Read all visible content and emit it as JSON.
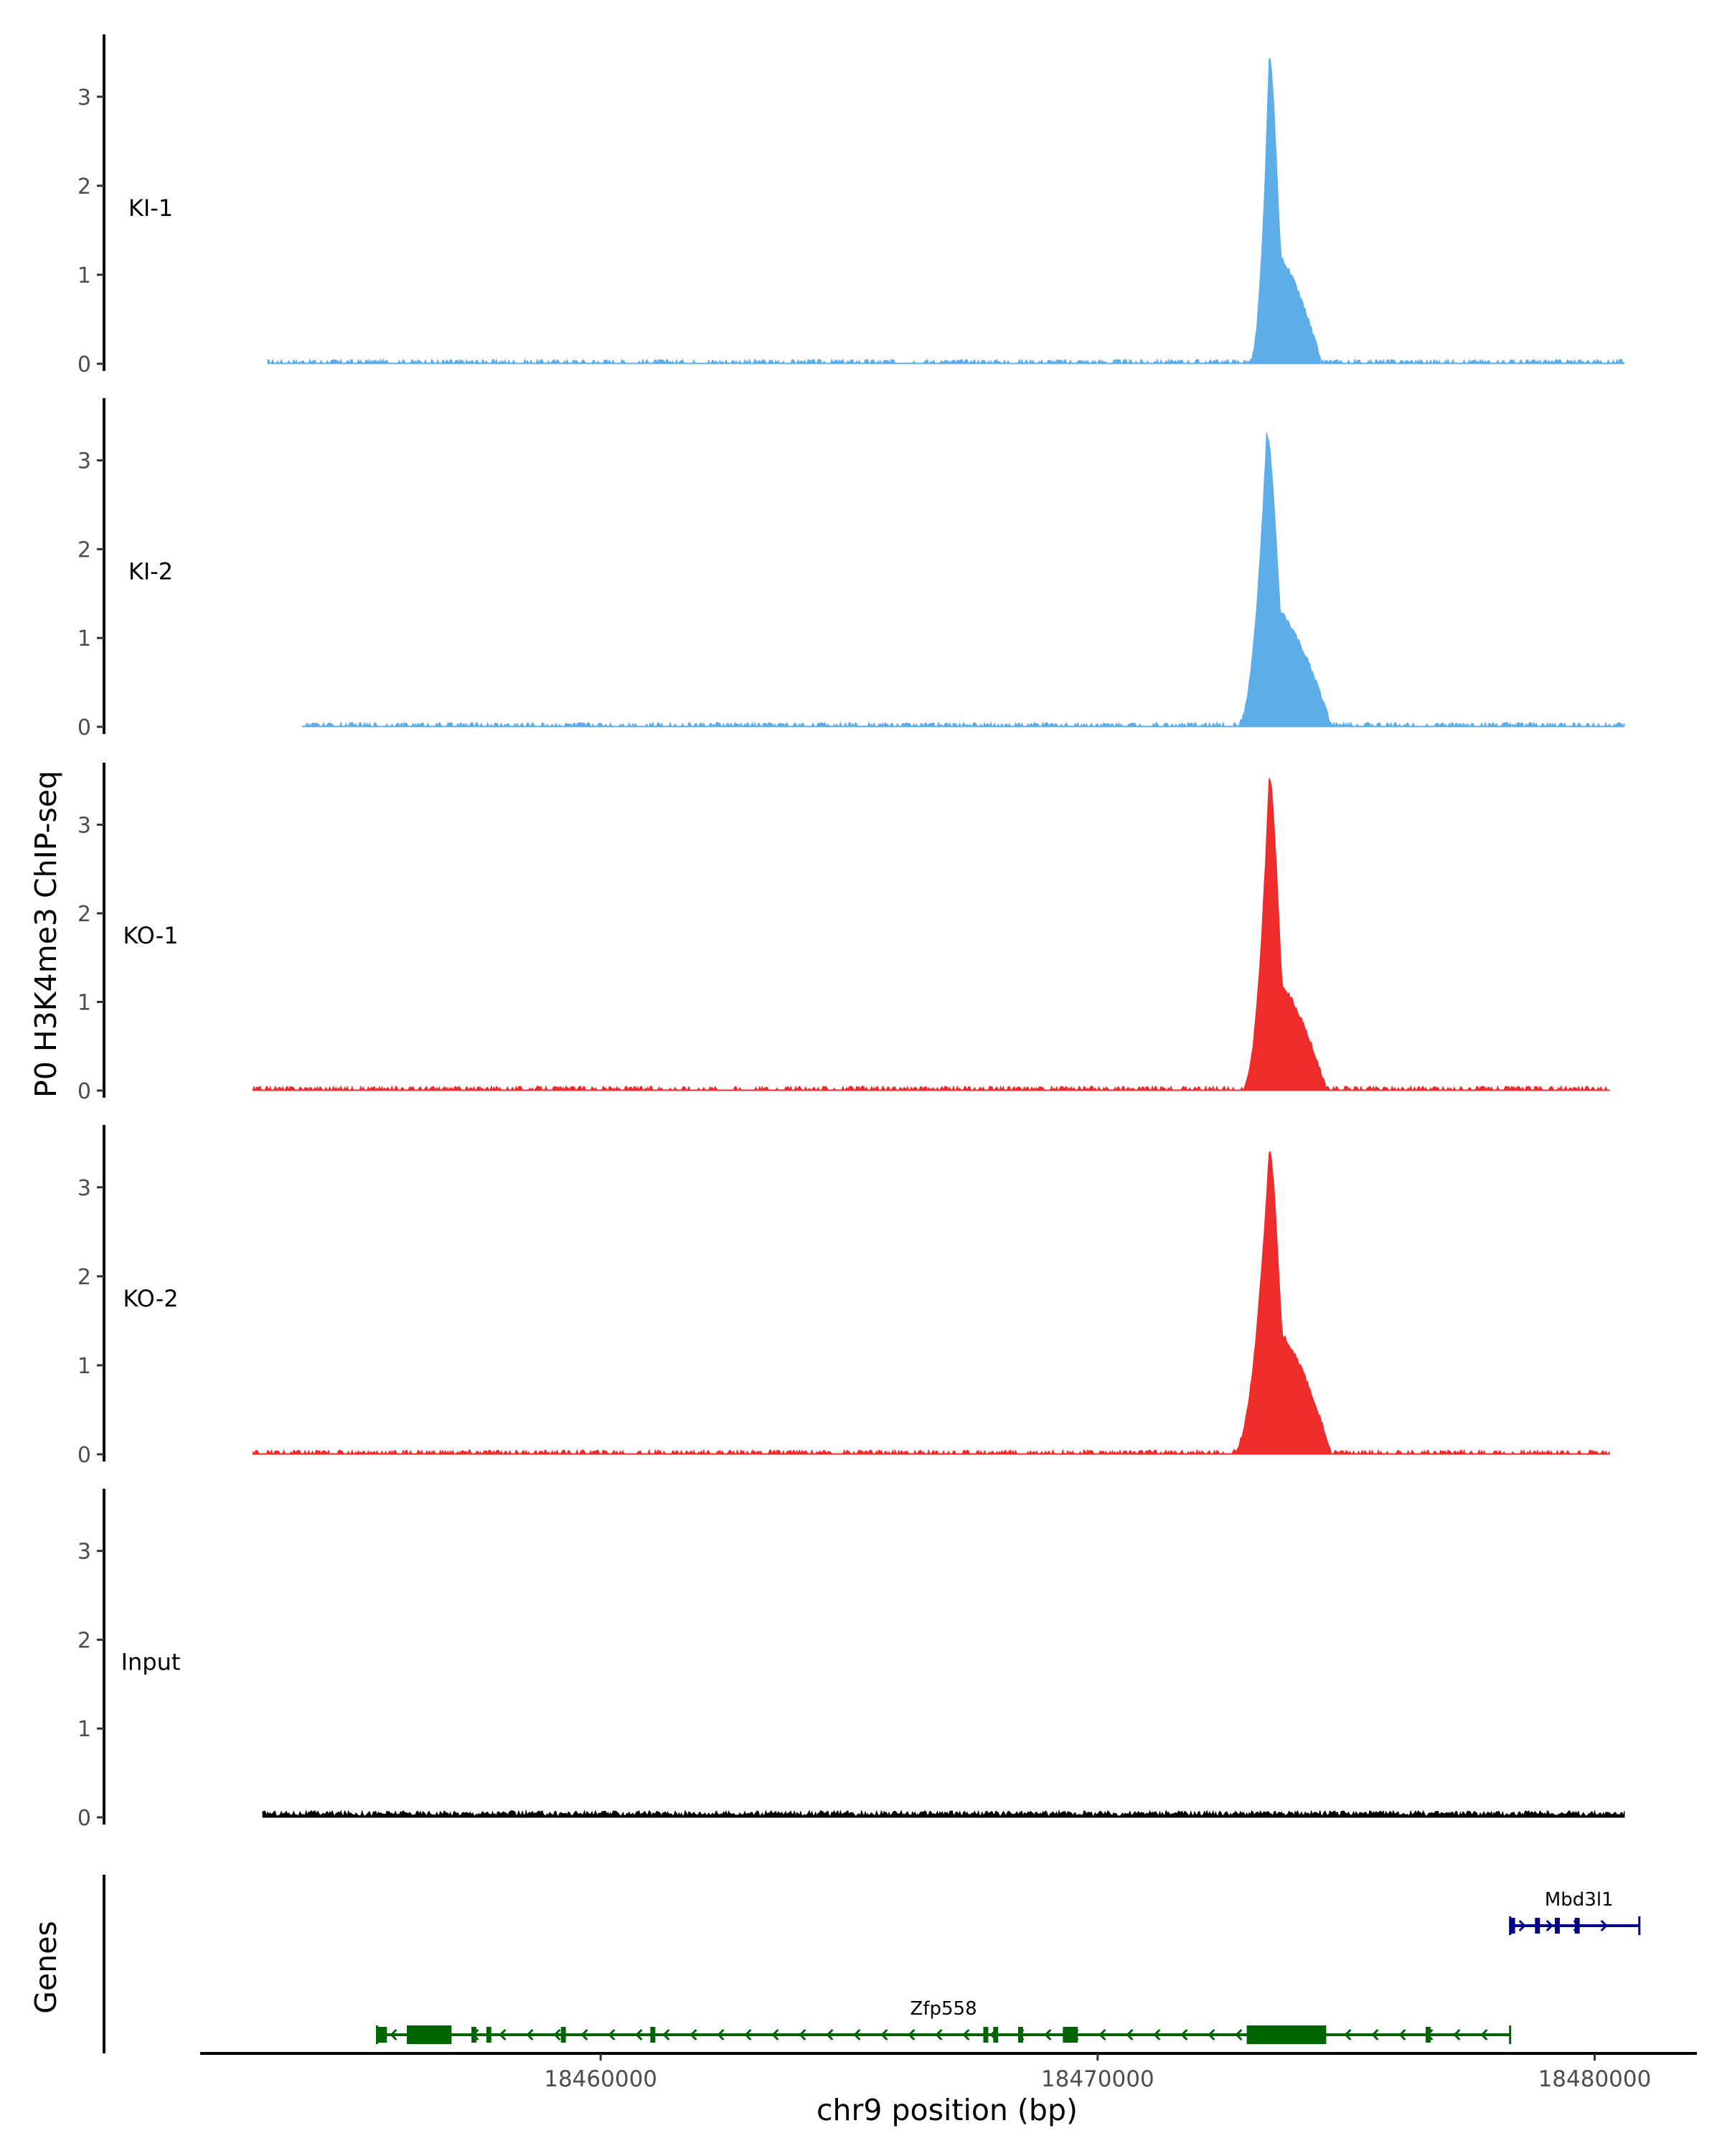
{
  "chart_data": {
    "type": "area",
    "title": "",
    "ylabel": "P0 H3K4me3 ChIP-seq",
    "xlabel": "chr9 position (bp)",
    "xlim": [
      18452000,
      18482000
    ],
    "ylim": [
      0,
      3.7
    ],
    "y_ticks": [
      0,
      1,
      2,
      3
    ],
    "x_ticks": [
      18460000,
      18470000,
      18480000
    ],
    "x_tick_labels": [
      "18460000",
      "18470000",
      "18480000"
    ],
    "tracks": [
      {
        "name": "KI-1",
        "color": "#5DADE9",
        "peak": {
          "start": 18473050,
          "end": 18474500,
          "center": 18473450,
          "height": 3.42,
          "shoulder": 1.3
        },
        "baseline_span": [
          18453300,
          18480600
        ]
      },
      {
        "name": "KI-2",
        "color": "#5DADE9",
        "peak": {
          "start": 18472800,
          "end": 18474700,
          "center": 18473400,
          "height": 3.27,
          "shoulder": 1.4
        },
        "baseline_span": [
          18454000,
          18480600
        ]
      },
      {
        "name": "KO-1",
        "color": "#EE2C2C",
        "peak": {
          "start": 18472900,
          "end": 18474600,
          "center": 18473450,
          "height": 3.52,
          "shoulder": 1.3
        },
        "baseline_span": [
          18453000,
          18480300
        ]
      },
      {
        "name": "KO-2",
        "color": "#EE2C2C",
        "peak": {
          "start": 18472700,
          "end": 18474700,
          "center": 18473450,
          "height": 3.38,
          "shoulder": 1.45
        },
        "baseline_span": [
          18453000,
          18480300
        ]
      },
      {
        "name": "Input",
        "color": "#000000",
        "peak": null,
        "baseline_span": [
          18453200,
          18480600
        ]
      }
    ],
    "genes_label": "Genes",
    "genes": [
      {
        "name": "Zfp558",
        "color": "#006400",
        "start": 18455500,
        "end": 18478300,
        "strand": "-",
        "exons": [
          [
            18455500,
            18455700
          ],
          [
            18456100,
            18457000
          ],
          [
            18457400,
            18457500
          ],
          [
            18457700,
            18457800
          ],
          [
            18459200,
            18459300
          ],
          [
            18461000,
            18461100
          ],
          [
            18467700,
            18467800
          ],
          [
            18467900,
            18468000
          ],
          [
            18468400,
            18468500
          ],
          [
            18469300,
            18469600
          ],
          [
            18473000,
            18474600
          ],
          [
            18476600,
            18476700
          ]
        ]
      },
      {
        "name": "Mbd3l1",
        "color": "#00008B",
        "start": 18478300,
        "end": 18480900,
        "strand": "+",
        "exons": [
          [
            18478300,
            18478400
          ],
          [
            18478800,
            18478900
          ],
          [
            18479200,
            18479300
          ],
          [
            18479600,
            18479700
          ]
        ]
      }
    ]
  }
}
